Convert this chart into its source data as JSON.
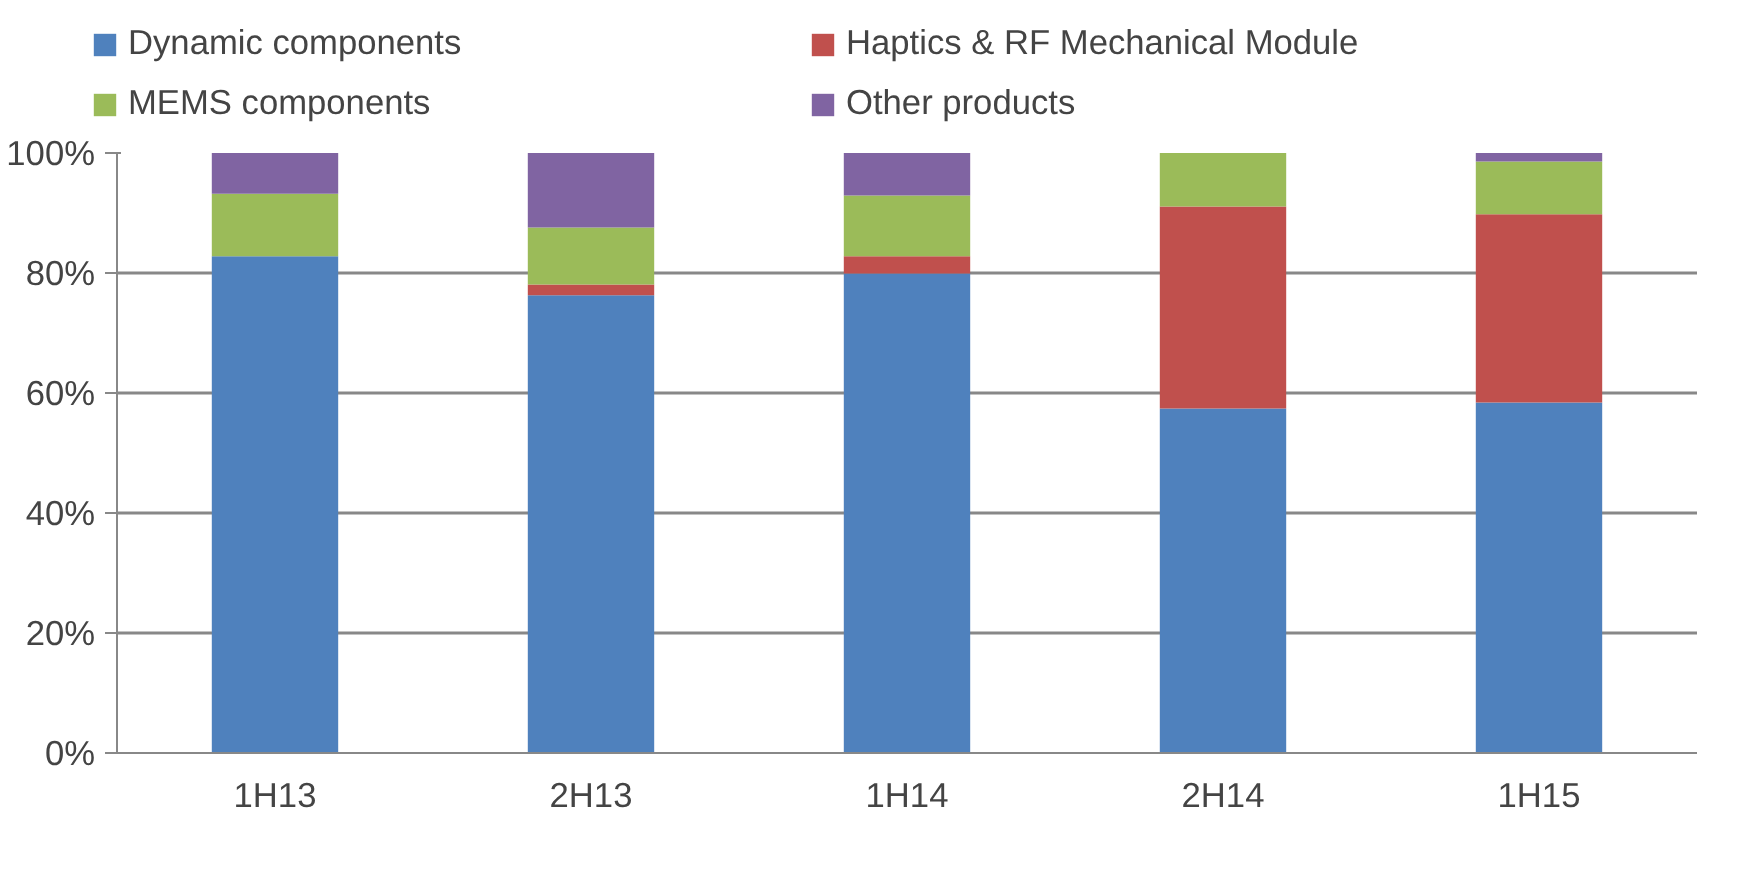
{
  "chart_data": {
    "type": "bar",
    "stacked": true,
    "categories": [
      "1H13",
      "2H13",
      "1H14",
      "2H14",
      "1H15"
    ],
    "series": [
      {
        "name": "Dynamic components",
        "color": "#4f81bd",
        "values": [
          82.8,
          76.3,
          79.9,
          57.4,
          58.4
        ]
      },
      {
        "name": "Haptics & RF Mechanical Module",
        "color": "#c0504d",
        "values": [
          0,
          1.8,
          2.9,
          33.7,
          31.4
        ]
      },
      {
        "name": "MEMS components",
        "color": "#9bbb59",
        "values": [
          10.4,
          9.5,
          10.1,
          8.9,
          8.8
        ]
      },
      {
        "name": "Other products",
        "color": "#8064a2",
        "values": [
          6.8,
          12.4,
          7.1,
          0,
          1.4
        ]
      }
    ],
    "ylim": [
      0,
      100
    ],
    "yticks": [
      {
        "value": 0,
        "label": "0%"
      },
      {
        "value": 20,
        "label": "20%"
      },
      {
        "value": 40,
        "label": "40%"
      },
      {
        "value": 60,
        "label": "60%"
      },
      {
        "value": 80,
        "label": "80%"
      },
      {
        "value": 100,
        "label": "100%"
      }
    ],
    "grid": "y",
    "legend": "top"
  }
}
